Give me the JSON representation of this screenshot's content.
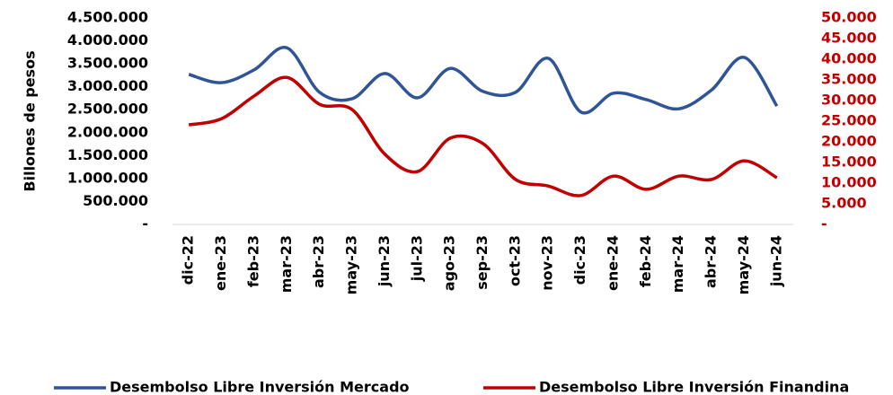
{
  "chart_data": {
    "type": "line",
    "y_label": "Billones de pesos",
    "categories": [
      "dic-22",
      "ene-23",
      "feb-23",
      "mar-23",
      "abr-23",
      "may-23",
      "jun-23",
      "jul-23",
      "ago-23",
      "sep-23",
      "oct-23",
      "nov-23",
      "dic-23",
      "ene-24",
      "feb-24",
      "mar-24",
      "abr-24",
      "may-24",
      "jun-24"
    ],
    "series": [
      {
        "name": "Desembolso Libre Inversión Mercado",
        "color": "#2f5597",
        "axis": "y",
        "values": [
          3270000,
          3090000,
          3370000,
          3850000,
          2880000,
          2740000,
          3290000,
          2760000,
          3400000,
          2900000,
          2880000,
          3620000,
          2450000,
          2860000,
          2720000,
          2520000,
          2930000,
          3640000,
          2580000
        ]
      },
      {
        "name": "Desembolso Libre Inversión Finandina",
        "color": "#c00000",
        "axis": "y2",
        "values": [
          24100,
          25600,
          31100,
          35600,
          29100,
          27800,
          17000,
          12800,
          20900,
          19600,
          10900,
          9300,
          7000,
          11700,
          8500,
          11700,
          10900,
          15400,
          11300
        ]
      }
    ],
    "ylim": [
      0,
      4500000
    ],
    "yticks": [
      {
        "value": 0,
        "label": "-"
      },
      {
        "value": 500000,
        "label": "500.000"
      },
      {
        "value": 1000000,
        "label": "1.000.000"
      },
      {
        "value": 1500000,
        "label": "1.500.000"
      },
      {
        "value": 2000000,
        "label": "2.000.000"
      },
      {
        "value": 2500000,
        "label": "2.500.000"
      },
      {
        "value": 3000000,
        "label": "3.000.000"
      },
      {
        "value": 3500000,
        "label": "3.500.000"
      },
      {
        "value": 4000000,
        "label": "4.000.000"
      },
      {
        "value": 4500000,
        "label": "4.500.000"
      }
    ],
    "y2lim": [
      0,
      50000
    ],
    "y2ticks": [
      {
        "value": 0,
        "label": "-"
      },
      {
        "value": 5000,
        "label": "5.000"
      },
      {
        "value": 10000,
        "label": "10.000"
      },
      {
        "value": 15000,
        "label": "15.000"
      },
      {
        "value": 20000,
        "label": "20.000"
      },
      {
        "value": 25000,
        "label": "25.000"
      },
      {
        "value": 30000,
        "label": "30.000"
      },
      {
        "value": 35000,
        "label": "35.000"
      },
      {
        "value": 40000,
        "label": "40.000"
      },
      {
        "value": 45000,
        "label": "45.000"
      },
      {
        "value": 50000,
        "label": "50.000"
      }
    ],
    "y2_color": "#c00000",
    "legend": "bottom"
  }
}
